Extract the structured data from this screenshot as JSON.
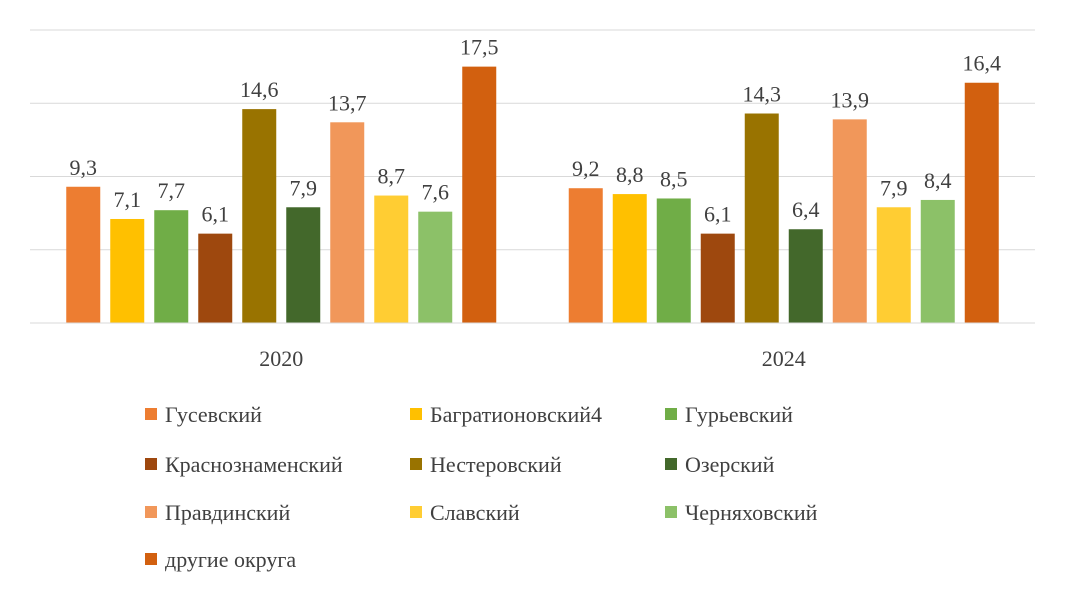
{
  "chart_data": {
    "type": "bar",
    "title": "",
    "xlabel": "",
    "ylabel": "",
    "categories": [
      "2020",
      "2024"
    ],
    "ylim": [
      0,
      20
    ],
    "grid": true,
    "legend_position": "bottom",
    "series": [
      {
        "name": "Гусевский",
        "color": "#ED7D31",
        "values": [
          9.3,
          9.2
        ],
        "labels": [
          "9,3",
          "9,2"
        ]
      },
      {
        "name": "Багратионовский4",
        "color": "#FFC000",
        "values": [
          7.1,
          8.8
        ],
        "labels": [
          "7,1",
          "8,8"
        ]
      },
      {
        "name": "Гурьевский",
        "color": "#70AD47",
        "values": [
          7.7,
          8.5
        ],
        "labels": [
          "7,7",
          "8,5"
        ]
      },
      {
        "name": "Краснознаменский",
        "color": "#9E480E",
        "values": [
          6.1,
          6.1
        ],
        "labels": [
          "6,1",
          "6,1"
        ]
      },
      {
        "name": "Нестеровский",
        "color": "#997300",
        "values": [
          14.6,
          14.3
        ],
        "labels": [
          "14,6",
          "14,3"
        ]
      },
      {
        "name": "Озерский",
        "color": "#43682B",
        "values": [
          7.9,
          6.4
        ],
        "labels": [
          "7,9",
          "6,4"
        ]
      },
      {
        "name": "Правдинский",
        "color": "#F1975A",
        "values": [
          13.7,
          13.9
        ],
        "labels": [
          "13,7",
          "13,9"
        ]
      },
      {
        "name": "Славский",
        "color": "#FFCD33",
        "values": [
          8.7,
          7.9
        ],
        "labels": [
          "8,7",
          "7,9"
        ]
      },
      {
        "name": "Черняховский",
        "color": "#8CC168",
        "values": [
          7.6,
          8.4
        ],
        "labels": [
          "7,6",
          "8,4"
        ]
      },
      {
        "name": "другие округа",
        "color": "#D2600F",
        "values": [
          17.5,
          16.4
        ],
        "labels": [
          "17,5",
          "16,4"
        ]
      }
    ]
  }
}
